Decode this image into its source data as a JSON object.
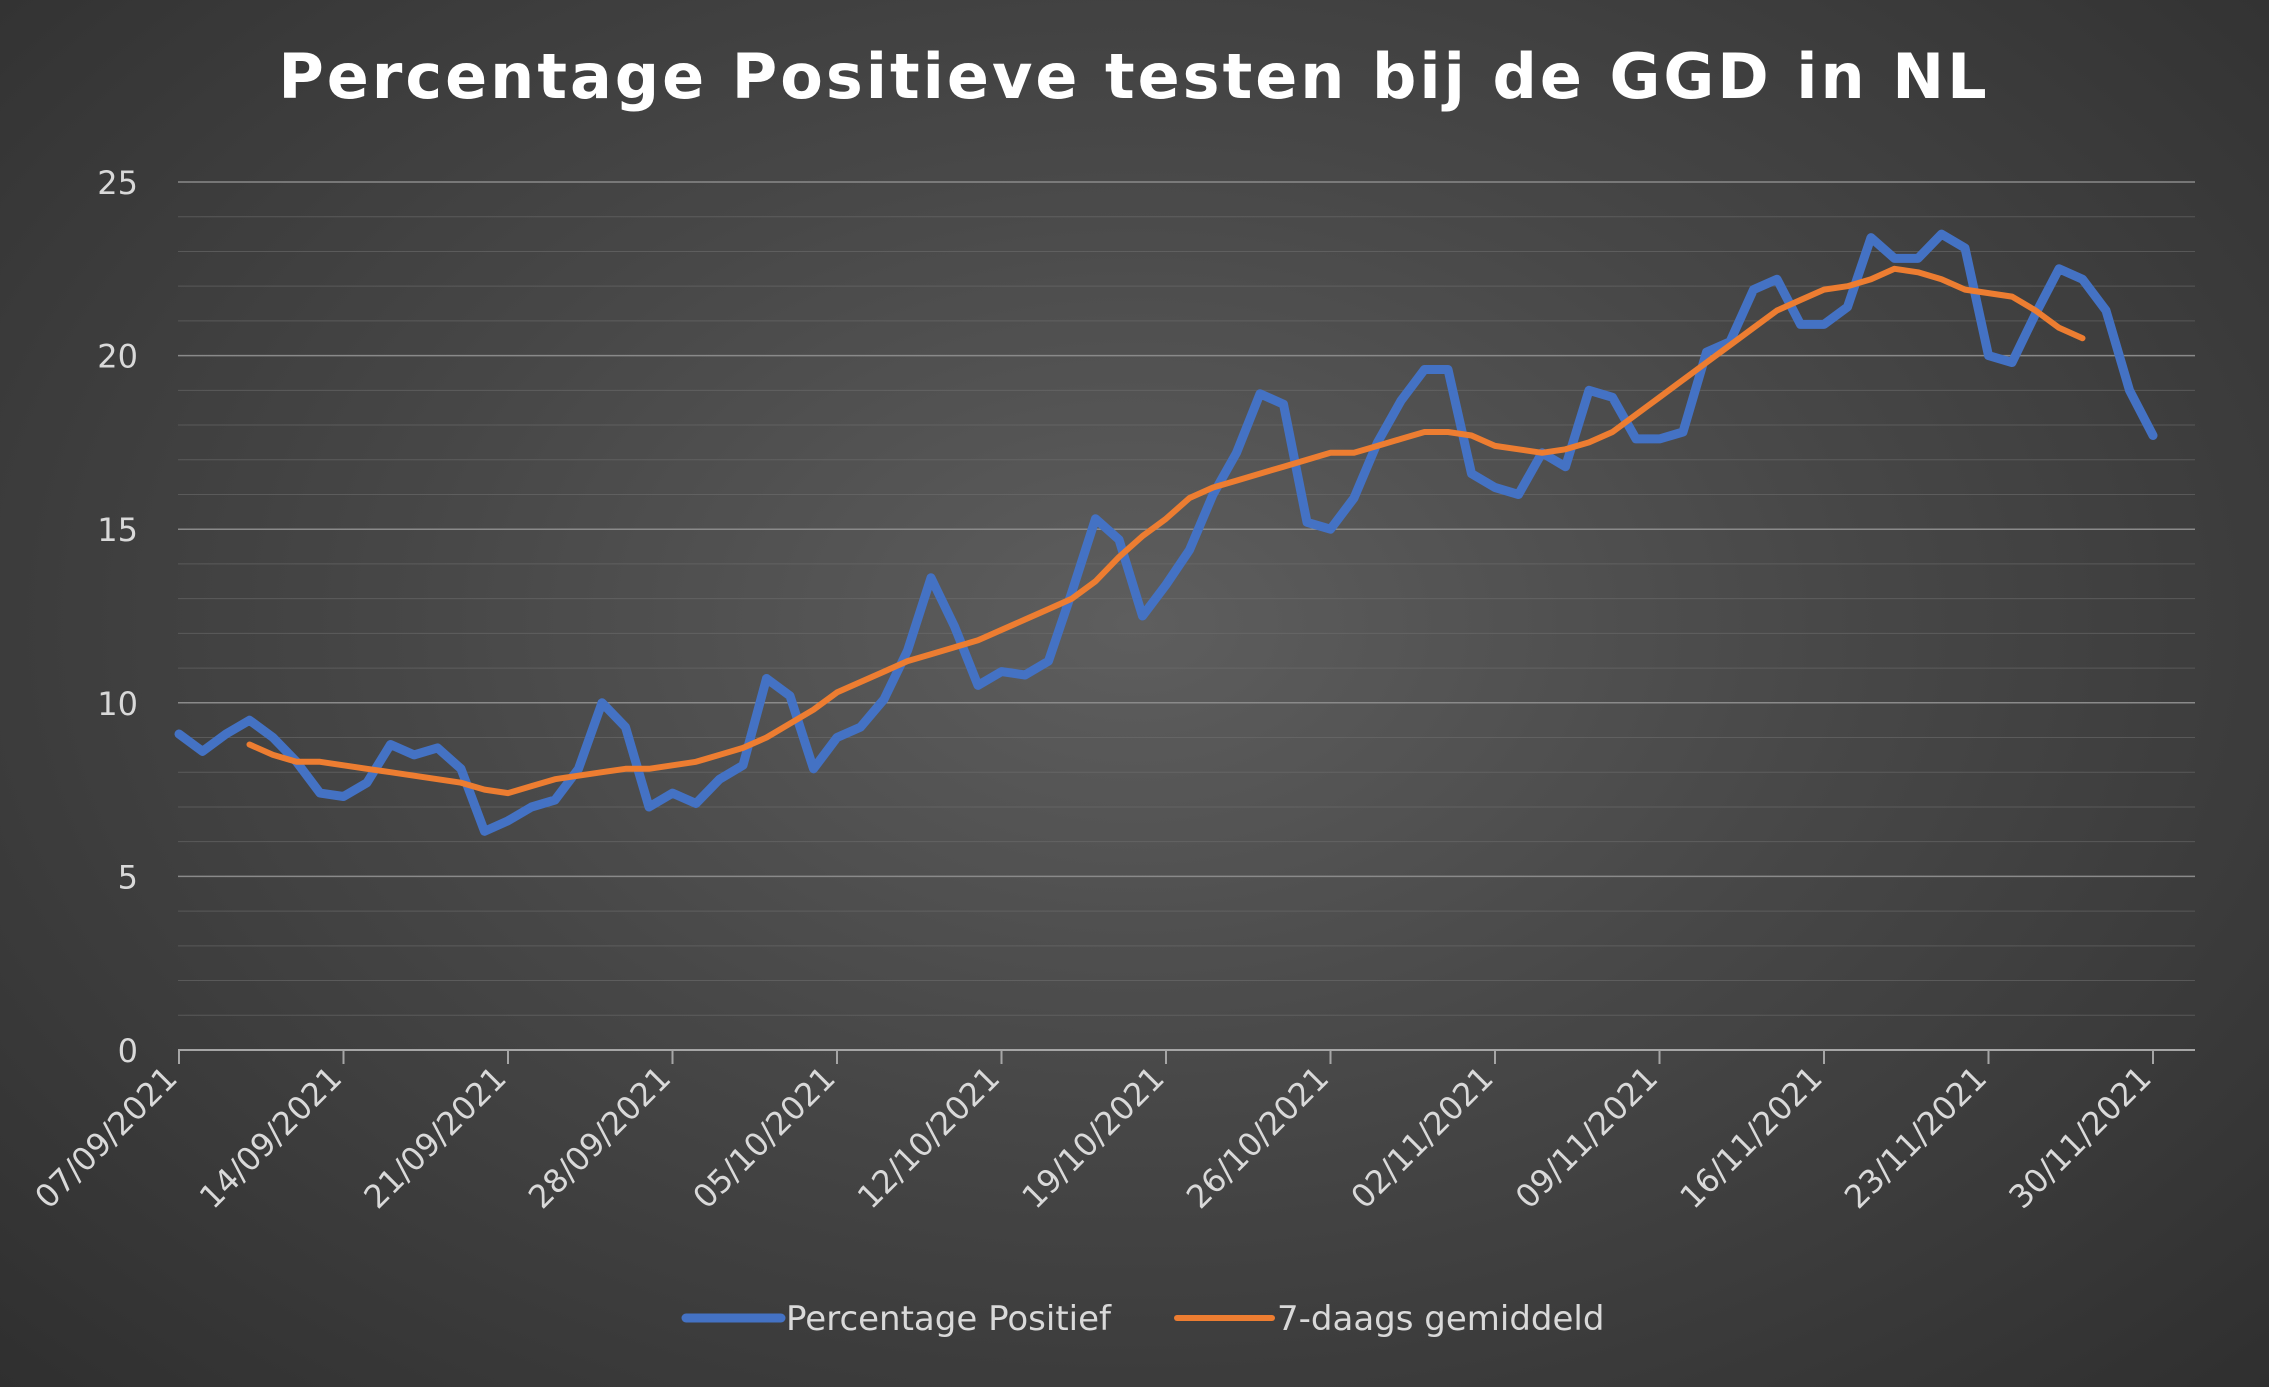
{
  "chart_data": {
    "type": "line",
    "title": "Percentage Positieve testen bij de GGD in NL",
    "xlabel": "",
    "ylabel": "",
    "ylim": [
      0,
      25
    ],
    "yticks": [
      "0",
      "5",
      "10",
      "15",
      "20",
      "25"
    ],
    "x_tick_labels": [
      "07/09/2021",
      "14/09/2021",
      "21/09/2021",
      "28/09/2021",
      "05/10/2021",
      "12/10/2021",
      "19/10/2021",
      "26/10/2021",
      "02/11/2021",
      "09/11/2021",
      "16/11/2021",
      "23/11/2021",
      "30/11/2021"
    ],
    "grid": true,
    "legend_position": "bottom",
    "series": [
      {
        "name": "Percentage Positief",
        "color": "#4472C4",
        "start_day": 0,
        "values": [
          9.1,
          8.6,
          9.1,
          9.5,
          9.0,
          8.3,
          7.4,
          7.3,
          7.7,
          8.8,
          8.5,
          8.7,
          8.1,
          6.3,
          6.6,
          7.0,
          7.2,
          8.1,
          10.0,
          9.3,
          7.0,
          7.4,
          7.1,
          7.8,
          8.2,
          10.7,
          10.2,
          8.1,
          9.0,
          9.3,
          10.1,
          11.5,
          13.6,
          12.2,
          10.5,
          10.9,
          10.8,
          11.2,
          13.2,
          15.3,
          14.7,
          12.5,
          13.4,
          14.4,
          16.0,
          17.2,
          18.9,
          18.6,
          15.2,
          15.0,
          15.9,
          17.5,
          18.7,
          19.6,
          19.6,
          16.6,
          16.2,
          16.0,
          17.2,
          16.8,
          19.0,
          18.8,
          17.6,
          17.6,
          17.8,
          20.1,
          20.4,
          21.9,
          22.2,
          20.9,
          20.9,
          21.4,
          23.4,
          22.8,
          22.8,
          23.5,
          23.1,
          20.0,
          19.8,
          21.2,
          22.5,
          22.2,
          21.3,
          19.0,
          17.7
        ]
      },
      {
        "name": "7-daags gemiddeld",
        "color": "#ED7D31",
        "start_day": 3,
        "values": [
          8.8,
          8.5,
          8.3,
          8.3,
          8.2,
          8.1,
          8.0,
          7.9,
          7.8,
          7.7,
          7.5,
          7.4,
          7.6,
          7.8,
          7.9,
          8.0,
          8.1,
          8.1,
          8.2,
          8.3,
          8.5,
          8.7,
          9.0,
          9.4,
          9.8,
          10.3,
          10.6,
          10.9,
          11.2,
          11.4,
          11.6,
          11.8,
          12.1,
          12.4,
          12.7,
          13.0,
          13.5,
          14.2,
          14.8,
          15.3,
          15.9,
          16.2,
          16.4,
          16.6,
          16.8,
          17.0,
          17.2,
          17.2,
          17.4,
          17.6,
          17.8,
          17.8,
          17.7,
          17.4,
          17.3,
          17.2,
          17.3,
          17.5,
          17.8,
          18.3,
          18.8,
          19.3,
          19.8,
          20.3,
          20.8,
          21.3,
          21.6,
          21.9,
          22.0,
          22.2,
          22.5,
          22.4,
          22.2,
          21.9,
          21.8,
          21.7,
          21.3,
          20.8,
          20.5
        ]
      }
    ]
  }
}
